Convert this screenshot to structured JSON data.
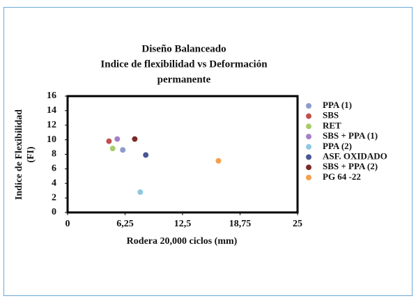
{
  "chart_data": {
    "type": "scatter",
    "title": [
      "Diseño Balanceado",
      "Indice de flexibilidad vs Deformación",
      "permanente"
    ],
    "xlabel": "Rodera 20,000 ciclos (mm)",
    "ylabel": [
      "Indice de Flexibilidad",
      "(FI)"
    ],
    "xlim": [
      0,
      25
    ],
    "xticks": [
      0,
      {
        "value": 6.25,
        "label": "6,25"
      },
      {
        "value": 12.5,
        "label": "12,5"
      },
      {
        "value": 18.75,
        "label": "18,75"
      },
      25
    ],
    "ylim": [
      0,
      16
    ],
    "yticks": [
      0,
      2,
      4,
      6,
      8,
      10,
      12,
      14,
      16
    ],
    "grid": false,
    "legend": "right",
    "series": [
      {
        "name": "PPA (1)",
        "color": "#8e9bd0",
        "x": [
          6.0
        ],
        "values": [
          8.6
        ]
      },
      {
        "name": "SBS",
        "color": "#c0504d",
        "x": [
          4.5
        ],
        "values": [
          9.8
        ]
      },
      {
        "name": "RET",
        "color": "#a9cc6a",
        "x": [
          4.9
        ],
        "values": [
          8.8
        ]
      },
      {
        "name": "SBS + PPA (1)",
        "color": "#a57fc8",
        "x": [
          5.4
        ],
        "values": [
          10.1
        ]
      },
      {
        "name": "PPA (2)",
        "color": "#8fc9e0",
        "x": [
          7.9
        ],
        "values": [
          2.8
        ]
      },
      {
        "name": "ASF. OXIDADO",
        "color": "#4a5694",
        "x": [
          8.5
        ],
        "values": [
          7.9
        ]
      },
      {
        "name": "SBS + PPA (2)",
        "color": "#7b2a2a",
        "x": [
          7.3
        ],
        "values": [
          10.1
        ]
      },
      {
        "name": "PG 64 -22",
        "color": "#f5a04c",
        "x": [
          16.4
        ],
        "values": [
          7.1
        ]
      }
    ]
  }
}
